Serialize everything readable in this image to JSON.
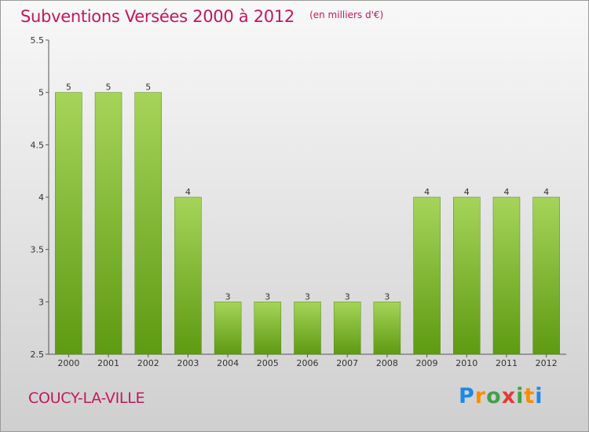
{
  "header": {
    "title": "Subventions Versées 2000 à 2012",
    "subtitle": "(en milliers d'€)"
  },
  "footer": {
    "commune": "COUCY-LA-VILLE",
    "logo_text": "Proxiti"
  },
  "colors": {
    "title": "#c2185b",
    "bar_light": "#a6d45a",
    "bar_dark": "#5e9a12",
    "bar_edge": "#4f8a0c"
  },
  "chart_data": {
    "type": "bar",
    "title": "Subventions Versées 2000 à 2012",
    "subtitle": "(en milliers d'€)",
    "categories": [
      "2000",
      "2001",
      "2002",
      "2003",
      "2004",
      "2005",
      "2006",
      "2007",
      "2008",
      "2009",
      "2010",
      "2011",
      "2012"
    ],
    "values": [
      5,
      5,
      5,
      4,
      3,
      3,
      3,
      3,
      3,
      4,
      4,
      4,
      4
    ],
    "ylim": [
      2.5,
      5.5
    ],
    "yticks": [
      2.5,
      3,
      3.5,
      4,
      4.5,
      5,
      5.5
    ],
    "ytick_labels": [
      "2.5",
      "3",
      "3.5",
      "4",
      "4.5",
      "5",
      "5.5"
    ],
    "xlabel": "",
    "ylabel": "",
    "grid": false,
    "legend": "none"
  }
}
